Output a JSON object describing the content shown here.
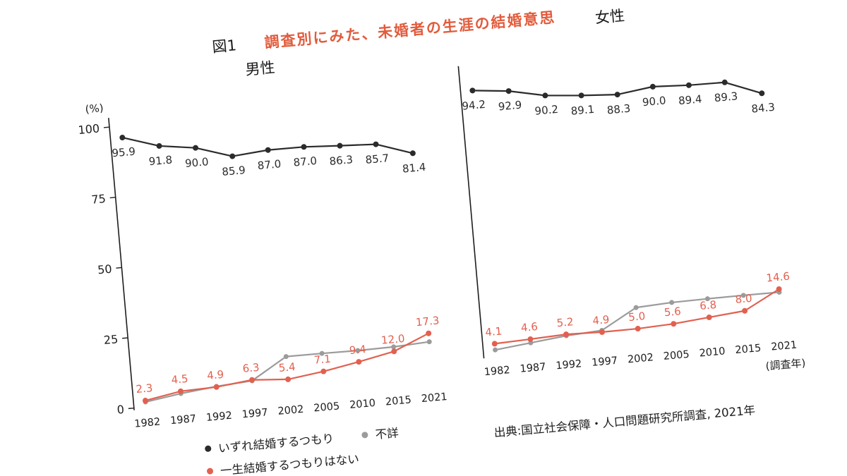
{
  "title": {
    "prefix": "図1",
    "text": "調査別にみた、未婚者の生涯の結婚意思"
  },
  "axis": {
    "unit": "(%)",
    "x_unit": "(調査年)",
    "yticks": [
      100,
      75,
      50,
      25,
      0
    ]
  },
  "legend": [
    {
      "name": "いずれ結婚するつもり",
      "color": "#2b2b2b"
    },
    {
      "name": "不詳",
      "color": "#9b9b9b"
    },
    {
      "name": "一生結婚するつもりはない",
      "color": "#e2604f"
    }
  ],
  "source": "出典:国立社会保障・人口問題研究所調査, 2021年",
  "colors": {
    "accent_title": "#e25b3c",
    "black_series": "#2b2b2b",
    "red_series": "#e2604f",
    "gray_series": "#9b9b9b"
  },
  "chart_data": [
    {
      "type": "line",
      "title": "男性",
      "categories": [
        1982,
        1987,
        1992,
        1997,
        2002,
        2005,
        2010,
        2015,
        2021
      ],
      "ylim": [
        0,
        100
      ],
      "ylabel": "(%)",
      "xlabel": "(調査年)",
      "grid": false,
      "legend_position": "bottom-left",
      "series": [
        {
          "name": "いずれ結婚するつもり",
          "color": "#2b2b2b",
          "labels": true,
          "label_position": "below",
          "values": [
            95.9,
            91.8,
            90.0,
            85.9,
            87.0,
            87.0,
            86.3,
            85.7,
            81.4
          ]
        },
        {
          "name": "一生結婚するつもりはない",
          "color": "#e2604f",
          "labels": true,
          "label_position": "above",
          "values": [
            2.3,
            4.5,
            4.9,
            6.3,
            5.4,
            7.1,
            9.4,
            12.0,
            17.3
          ]
        },
        {
          "name": "不詳",
          "color": "#9b9b9b",
          "labels": false,
          "estimated": true,
          "values": [
            1.8,
            3.7,
            5.1,
            6.0,
            13.5,
            13.5,
            13.4,
            13.6,
            14.3
          ]
        }
      ]
    },
    {
      "type": "line",
      "title": "女性",
      "categories": [
        1982,
        1987,
        1992,
        1997,
        2002,
        2005,
        2010,
        2015,
        2021
      ],
      "ylim": [
        0,
        100
      ],
      "ylabel": "(%)",
      "xlabel": "(調査年)",
      "grid": false,
      "legend_position": "bottom-left",
      "series": [
        {
          "name": "いずれ結婚するつもり",
          "color": "#2b2b2b",
          "labels": true,
          "label_position": "below",
          "values": [
            94.2,
            92.9,
            90.2,
            89.1,
            88.3,
            90.0,
            89.4,
            89.3,
            84.3
          ]
        },
        {
          "name": "一生結婚するつもりはない",
          "color": "#e2604f",
          "labels": true,
          "label_position": "above",
          "values": [
            4.1,
            4.6,
            5.2,
            4.9,
            5.0,
            5.6,
            6.8,
            8.0,
            14.6
          ]
        },
        {
          "name": "不詳",
          "color": "#9b9b9b",
          "labels": false,
          "estimated": true,
          "values": [
            1.9,
            3.3,
            4.7,
            5.5,
            12.5,
            13.2,
            13.4,
            13.5,
            13.5
          ]
        }
      ]
    }
  ]
}
